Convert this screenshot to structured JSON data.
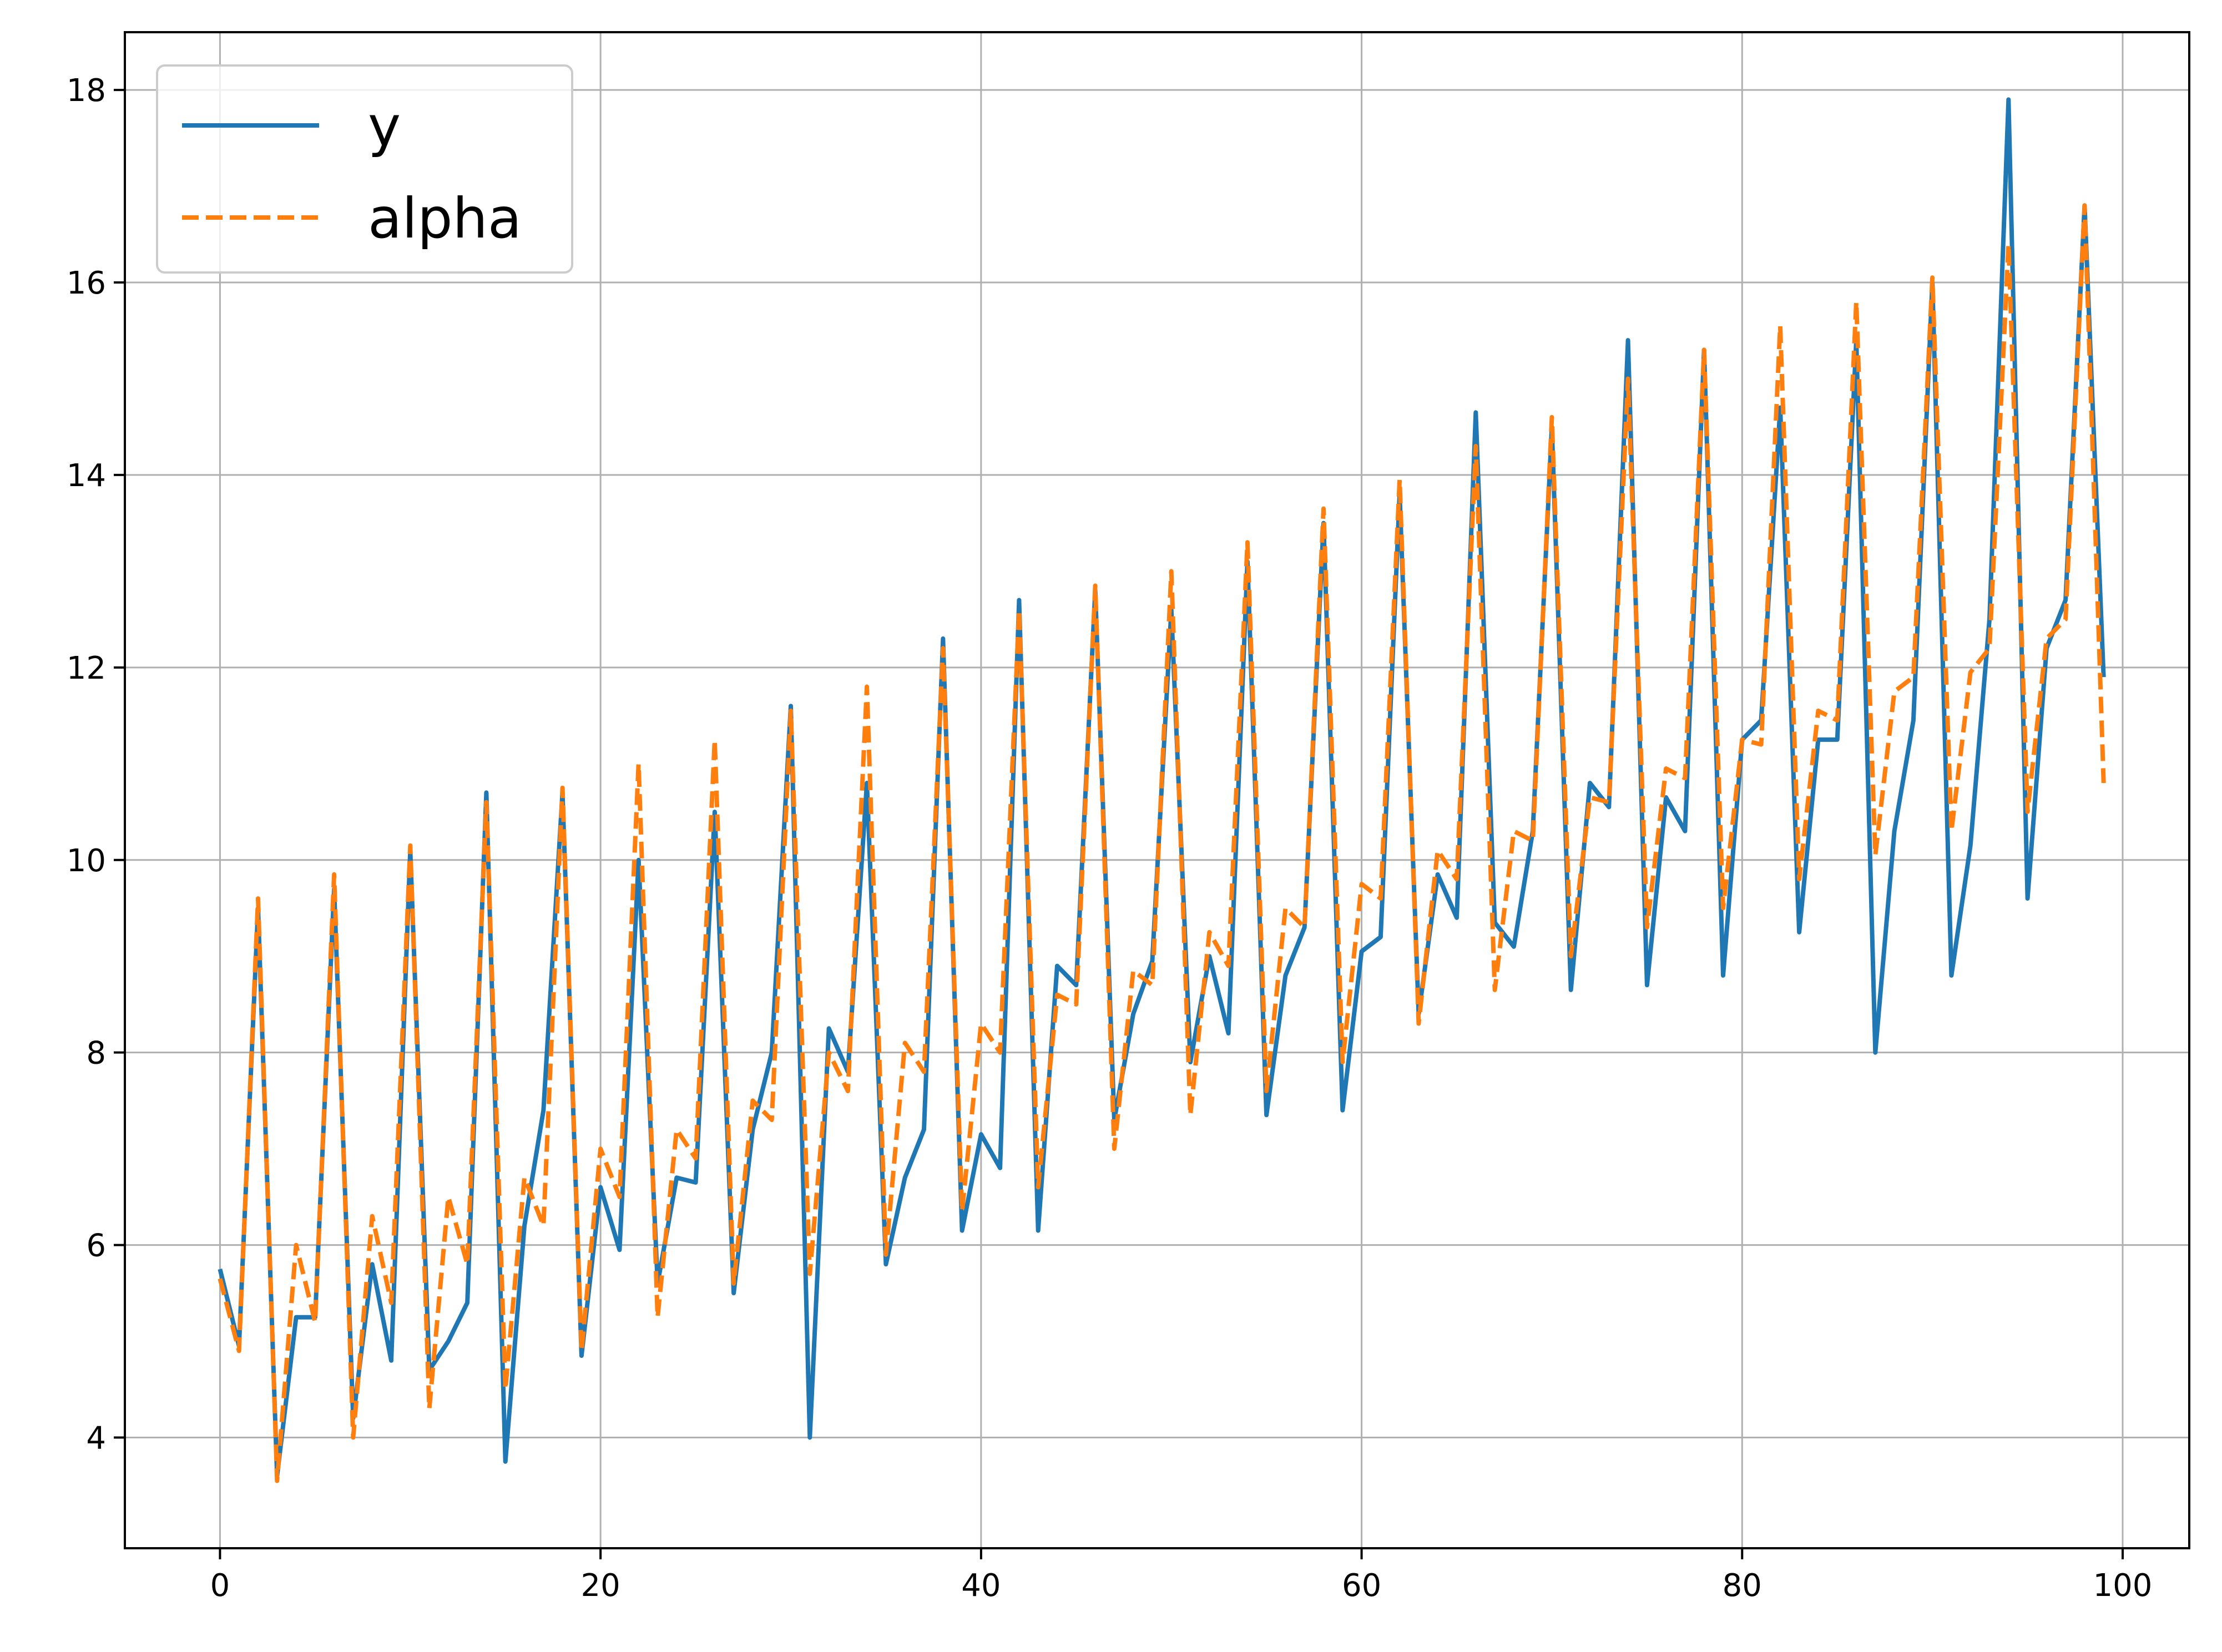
{
  "chart_data": {
    "type": "line",
    "title": "",
    "xlabel": "",
    "ylabel": "",
    "xlim": [
      -5,
      103.5
    ],
    "ylim": [
      2.85,
      18.6
    ],
    "xticks": [
      0,
      20,
      40,
      60,
      80,
      100
    ],
    "yticks": [
      4,
      6,
      8,
      10,
      12,
      14,
      16,
      18
    ],
    "grid": true,
    "legend_position": "top-left",
    "x": [
      0,
      1,
      2,
      3,
      4,
      5,
      6,
      7,
      8,
      9,
      10,
      11,
      12,
      13,
      14,
      15,
      16,
      17,
      18,
      19,
      20,
      21,
      22,
      23,
      24,
      25,
      26,
      27,
      28,
      29,
      30,
      31,
      32,
      33,
      34,
      35,
      36,
      37,
      38,
      39,
      40,
      41,
      42,
      43,
      44,
      45,
      46,
      47,
      48,
      49,
      50,
      51,
      52,
      53,
      54,
      55,
      56,
      57,
      58,
      59,
      60,
      61,
      62,
      63,
      64,
      65,
      66,
      67,
      68,
      69,
      70,
      71,
      72,
      73,
      74,
      75,
      76,
      77,
      78,
      79,
      80,
      81,
      82,
      83,
      84,
      85,
      86,
      87,
      88,
      89,
      90,
      91,
      92,
      93,
      94,
      95,
      96,
      97,
      98,
      99
    ],
    "series": [
      {
        "name": "y",
        "color": "#1f77b4",
        "style": "solid",
        "values": [
          5.75,
          4.95,
          9.5,
          3.6,
          5.25,
          5.25,
          9.7,
          4.2,
          5.8,
          4.8,
          10.1,
          4.7,
          5.0,
          5.4,
          10.7,
          3.75,
          6.2,
          7.4,
          10.7,
          4.85,
          6.6,
          5.95,
          10.0,
          5.6,
          6.7,
          6.65,
          10.5,
          5.5,
          7.2,
          8.0,
          11.6,
          4.0,
          8.25,
          7.8,
          10.8,
          5.8,
          6.7,
          7.2,
          12.3,
          6.15,
          7.15,
          6.8,
          12.7,
          6.15,
          8.9,
          8.7,
          12.8,
          7.3,
          8.4,
          8.95,
          12.6,
          7.9,
          9.0,
          8.2,
          13.1,
          7.35,
          8.8,
          9.3,
          13.5,
          7.4,
          9.05,
          9.2,
          13.8,
          8.4,
          9.85,
          9.4,
          14.65,
          9.35,
          9.1,
          10.3,
          14.5,
          8.65,
          10.8,
          10.55,
          15.4,
          8.7,
          10.65,
          10.3,
          15.3,
          8.8,
          11.25,
          11.45,
          14.7,
          9.25,
          11.25,
          11.25,
          15.4,
          8.0,
          10.3,
          11.45,
          16.0,
          8.8,
          10.15,
          12.5,
          17.9,
          9.6,
          12.2,
          12.7,
          16.8,
          11.9
        ]
      },
      {
        "name": "alpha",
        "color": "#ff7f0e",
        "style": "dashed",
        "values": [
          5.65,
          4.9,
          9.6,
          3.55,
          6.0,
          5.2,
          9.85,
          4.0,
          6.3,
          5.4,
          10.15,
          4.3,
          6.5,
          5.8,
          10.6,
          4.5,
          6.7,
          6.2,
          10.75,
          4.9,
          7.0,
          6.5,
          11.0,
          5.25,
          7.2,
          6.9,
          11.25,
          5.6,
          7.5,
          7.3,
          11.55,
          5.7,
          8.0,
          7.6,
          11.8,
          5.9,
          8.1,
          7.8,
          12.2,
          6.35,
          8.3,
          8.0,
          12.6,
          6.6,
          8.6,
          8.5,
          12.85,
          7.0,
          8.85,
          8.7,
          13.0,
          7.35,
          9.25,
          8.9,
          13.3,
          7.6,
          9.5,
          9.3,
          13.65,
          7.9,
          9.75,
          9.6,
          13.95,
          8.3,
          10.1,
          9.8,
          14.3,
          8.65,
          10.3,
          10.2,
          14.6,
          9.0,
          10.65,
          10.6,
          15.0,
          9.3,
          10.95,
          10.85,
          15.3,
          9.5,
          11.25,
          11.2,
          15.55,
          9.8,
          11.55,
          11.45,
          15.8,
          10.05,
          11.75,
          11.9,
          16.05,
          10.3,
          11.95,
          12.2,
          16.4,
          10.5,
          12.3,
          12.5,
          16.8,
          10.8
        ]
      }
    ]
  }
}
